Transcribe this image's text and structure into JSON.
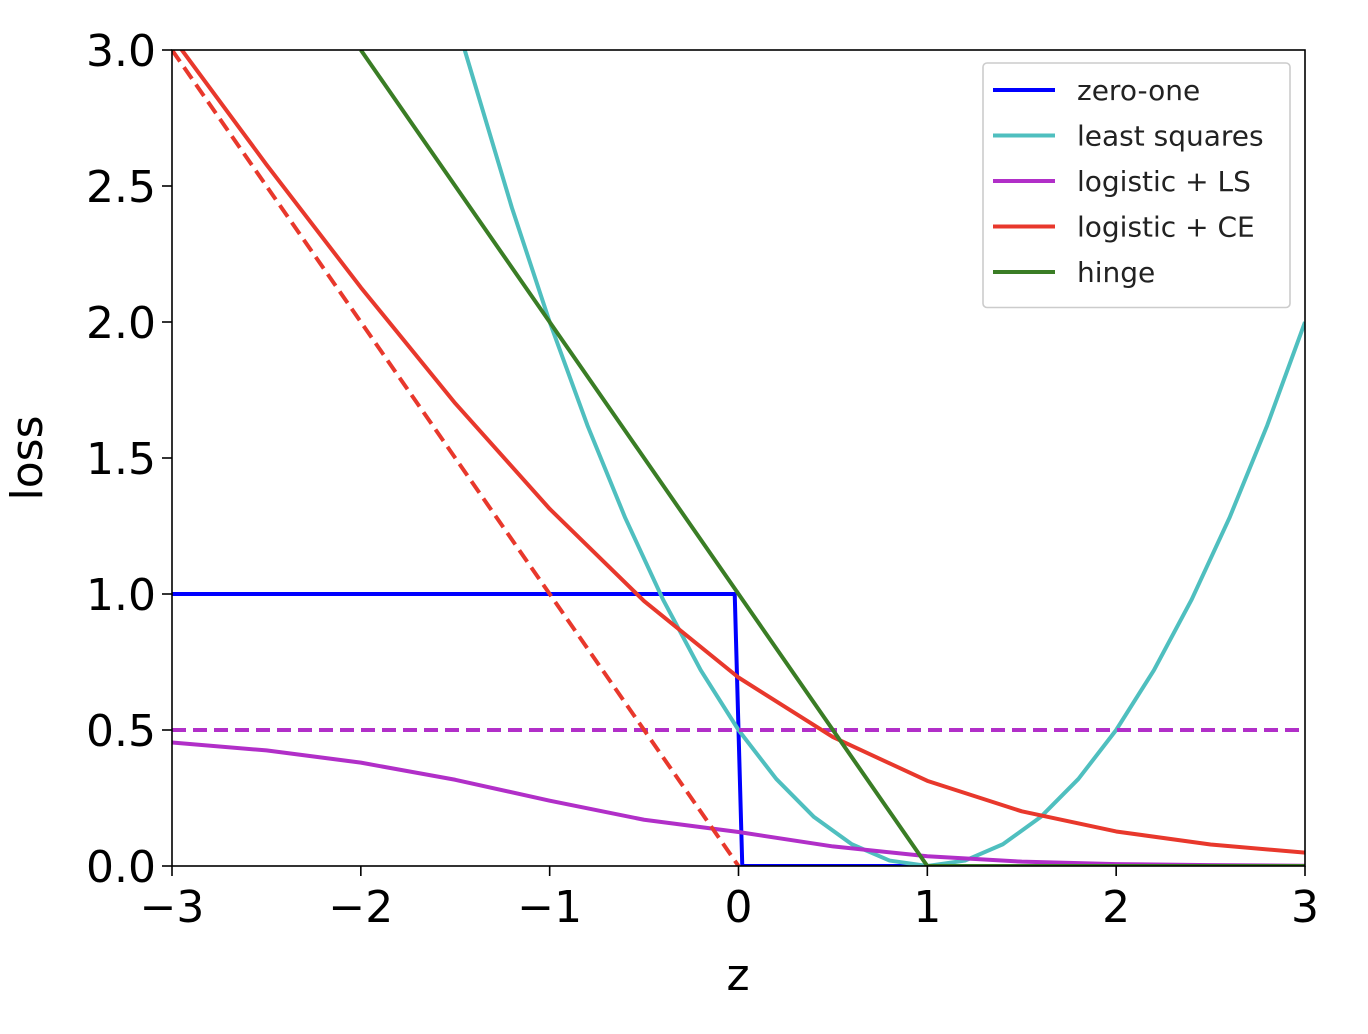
{
  "chart_data": {
    "type": "line",
    "title": "",
    "xlabel": "z",
    "ylabel": "loss",
    "xlim": [
      -3,
      3
    ],
    "ylim": [
      0,
      3
    ],
    "grid": false,
    "legend_position": "top-right",
    "xticks": [
      -3,
      -2,
      -1,
      0,
      1,
      2,
      3
    ],
    "xtick_labels": [
      "−3",
      "−2",
      "−1",
      "0",
      "1",
      "2",
      "3"
    ],
    "yticks": [
      0.0,
      0.5,
      1.0,
      1.5,
      2.0,
      2.5,
      3.0
    ],
    "ytick_labels": [
      "0.0",
      "0.5",
      "1.0",
      "1.5",
      "2.0",
      "2.5",
      "3.0"
    ],
    "series": [
      {
        "name": "zero-one",
        "color": "#0000ff",
        "style": "solid",
        "legend": true,
        "x": [
          -3,
          -0.02,
          0.02,
          3
        ],
        "y": [
          1,
          1,
          0,
          0
        ]
      },
      {
        "name": "least squares",
        "color": "#4fbfbf",
        "style": "solid",
        "legend": true,
        "x": [
          -1.45,
          -1.2,
          -1.0,
          -0.8,
          -0.6,
          -0.4,
          -0.2,
          0.0,
          0.2,
          0.4,
          0.6,
          0.8,
          1.0,
          1.2,
          1.4,
          1.6,
          1.8,
          2.0,
          2.2,
          2.4,
          2.6,
          2.8,
          3.0
        ],
        "y": [
          3.0,
          2.42,
          2.0,
          1.62,
          1.28,
          0.98,
          0.72,
          0.5,
          0.32,
          0.18,
          0.08,
          0.02,
          0.0,
          0.02,
          0.08,
          0.18,
          0.32,
          0.5,
          0.72,
          0.98,
          1.28,
          1.62,
          2.0
        ]
      },
      {
        "name": "logistic + LS",
        "color": "#b12fc8",
        "style": "solid",
        "legend": true,
        "x": [
          -3.0,
          -2.5,
          -2.0,
          -1.5,
          -1.0,
          -0.5,
          0.0,
          0.5,
          1.0,
          1.5,
          2.0,
          2.5,
          3.0
        ],
        "y": [
          0.454,
          0.425,
          0.38,
          0.317,
          0.24,
          0.17,
          0.125,
          0.072,
          0.036,
          0.016,
          0.007,
          0.003,
          0.001
        ]
      },
      {
        "name": "logistic + LS asymptote",
        "color": "#b12fc8",
        "style": "dashed",
        "legend": false,
        "x": [
          -3,
          3
        ],
        "y": [
          0.5,
          0.5
        ]
      },
      {
        "name": "logistic + CE",
        "color": "#e8382c",
        "style": "solid",
        "legend": true,
        "x": [
          -3.0,
          -2.5,
          -2.0,
          -1.5,
          -1.0,
          -0.5,
          0.0,
          0.5,
          1.0,
          1.5,
          2.0,
          2.5,
          3.0
        ],
        "y": [
          3.049,
          2.579,
          2.127,
          1.701,
          1.313,
          0.974,
          0.693,
          0.474,
          0.313,
          0.201,
          0.127,
          0.079,
          0.049
        ]
      },
      {
        "name": "logistic + CE asymptote",
        "color": "#e8382c",
        "style": "dashed",
        "legend": false,
        "x": [
          -3,
          0
        ],
        "y": [
          3,
          0
        ]
      },
      {
        "name": "hinge",
        "color": "#3a7d25",
        "style": "solid",
        "legend": true,
        "x": [
          -2.0,
          1.0,
          3.0
        ],
        "y": [
          3.0,
          0.0,
          0.0
        ]
      }
    ]
  }
}
